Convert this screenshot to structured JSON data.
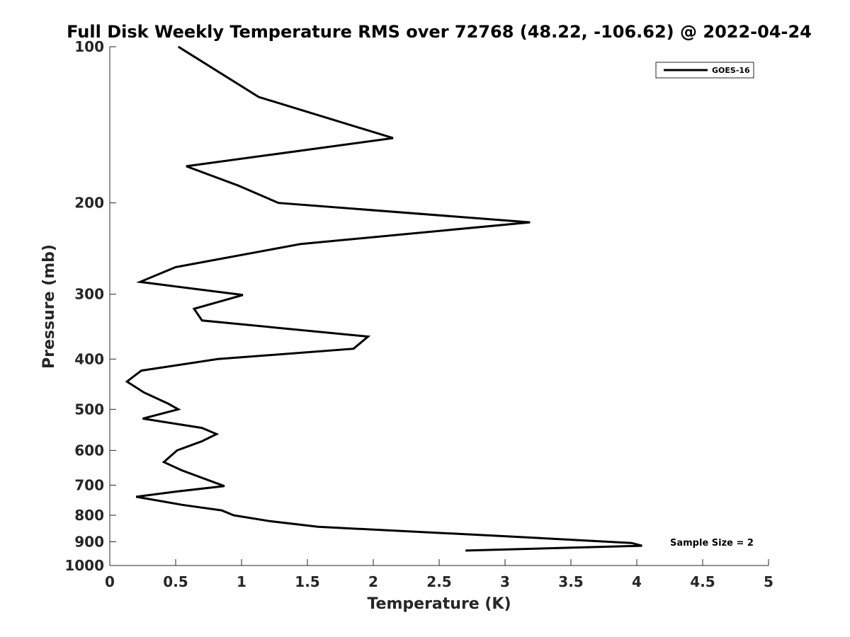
{
  "chart_data": {
    "type": "line",
    "title": "Full Disk Weekly Temperature RMS over 72768 (48.22, -106.62) @ 2022-04-24",
    "xlabel": "Temperature (K)",
    "ylabel": "Pressure (mb)",
    "xlim": [
      0,
      5
    ],
    "ylim": [
      100,
      1000
    ],
    "yscale": "log",
    "y_reversed": true,
    "grid": false,
    "legend_position": "top-right",
    "xticks": [
      0,
      0.5,
      1,
      1.5,
      2,
      2.5,
      3,
      3.5,
      4,
      4.5,
      5
    ],
    "xtick_labels": [
      "0",
      "0.5",
      "1",
      "1.5",
      "2",
      "2.5",
      "3",
      "3.5",
      "4",
      "4.5",
      "5"
    ],
    "yticks": [
      100,
      200,
      300,
      400,
      500,
      600,
      700,
      800,
      900,
      1000
    ],
    "ytick_labels": [
      "100",
      "200",
      "300",
      "400",
      "500",
      "600",
      "700",
      "800",
      "900",
      "1000"
    ],
    "series": [
      {
        "name": "GOES-16",
        "color": "#000000",
        "x": [
          0.52,
          1.13,
          2.15,
          0.58,
          0.97,
          1.28,
          3.19,
          1.45,
          0.5,
          0.23,
          1.01,
          0.64,
          0.7,
          1.96,
          1.85,
          0.82,
          0.24,
          0.13,
          0.26,
          0.44,
          0.52,
          0.25,
          0.7,
          0.81,
          0.7,
          0.51,
          0.41,
          0.55,
          0.87,
          0.51,
          0.2,
          0.55,
          0.85,
          0.94,
          1.21,
          1.58,
          3.0,
          3.96,
          4.04,
          2.7
        ],
        "y": [
          100,
          125,
          150,
          170,
          185,
          200,
          218,
          240,
          266,
          284,
          301,
          320,
          337,
          362,
          382,
          400,
          421,
          442,
          464,
          487,
          500,
          521,
          543,
          558,
          576,
          600,
          632,
          656,
          703,
          720,
          737,
          764,
          783,
          800,
          821,
          842,
          878,
          905,
          916,
          936
        ]
      }
    ],
    "annotations": [
      "Sample Size = 2"
    ]
  }
}
